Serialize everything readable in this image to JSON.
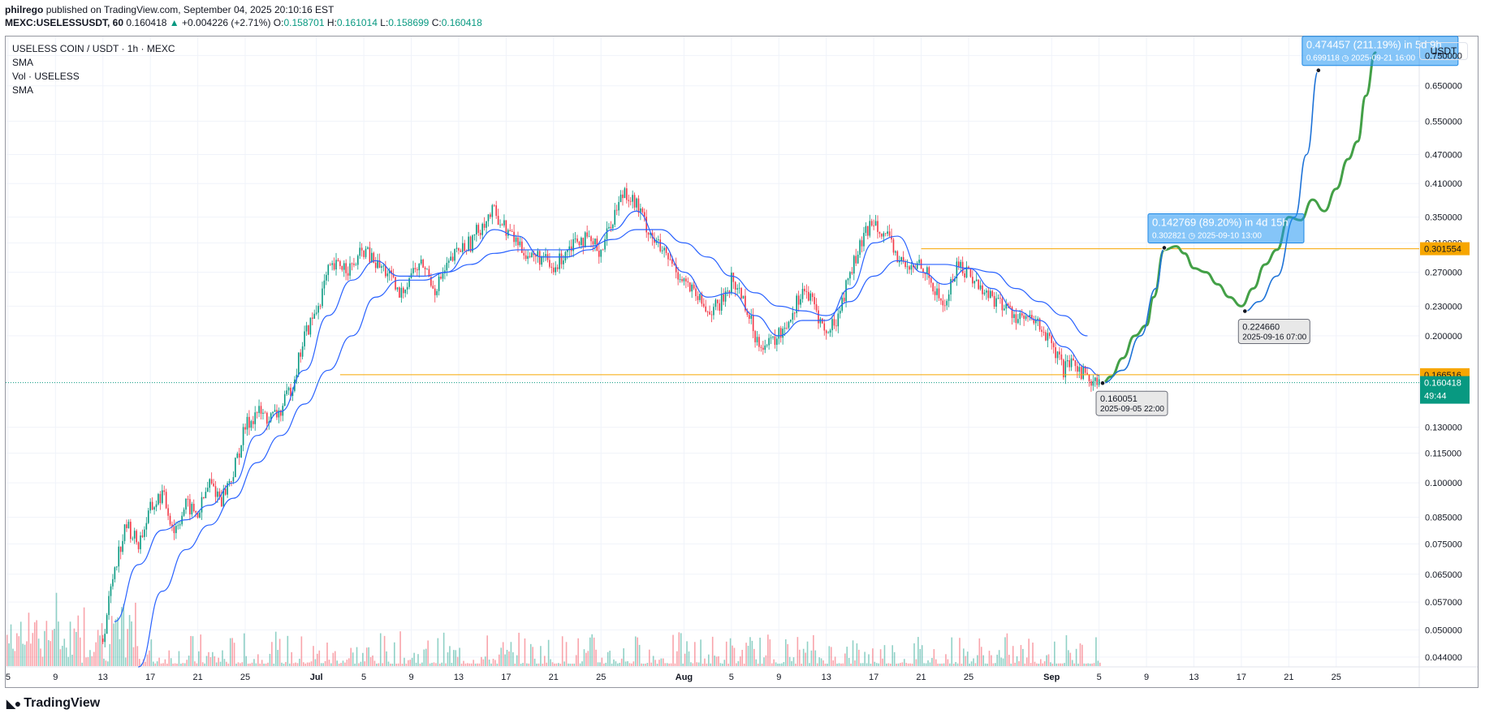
{
  "header": {
    "publisher": "philrego",
    "published_text": "published on TradingView.com, September 04, 2025 20:10:16 EST",
    "symbol": "MEXC:USELESSUSDT, 60",
    "last": "0.160418",
    "change": "+0.004226 (+2.71%)",
    "o_label": "O:",
    "o": "0.158701",
    "h_label": "H:",
    "h": "0.161014",
    "l_label": "L:",
    "l": "0.158699",
    "c_label": "C:",
    "c": "0.160418"
  },
  "legend": {
    "title": "USELESS COIN / USDT · 1h · MEXC",
    "sma1": "SMA",
    "vol": "Vol · USELESS",
    "sma2": "SMA"
  },
  "unit_button": "USDT",
  "brand": "TradingView",
  "chart_data": {
    "type": "candlestick",
    "title": "USELESS COIN / USDT · 1h · MEXC",
    "y_scale": "log",
    "y_range": [
      0.042,
      0.82
    ],
    "y_ticks": [
      "0.750000",
      "0.650000",
      "0.550000",
      "0.470000",
      "0.410000",
      "0.350000",
      "0.310000",
      "0.270000",
      "0.230000",
      "0.200000",
      "0.130000",
      "0.115000",
      "0.100000",
      "0.085000",
      "0.075000",
      "0.065000",
      "0.057000",
      "0.050000",
      "0.044000"
    ],
    "x_ticks": [
      {
        "label": "5",
        "day": 5
      },
      {
        "label": "9",
        "day": 9
      },
      {
        "label": "13",
        "day": 13
      },
      {
        "label": "17",
        "day": 17
      },
      {
        "label": "21",
        "day": 21
      },
      {
        "label": "25",
        "day": 25
      },
      {
        "label": "Jul",
        "day": 31
      },
      {
        "label": "5",
        "day": 35
      },
      {
        "label": "9",
        "day": 39
      },
      {
        "label": "13",
        "day": 43
      },
      {
        "label": "17",
        "day": 47
      },
      {
        "label": "21",
        "day": 51
      },
      {
        "label": "25",
        "day": 55
      },
      {
        "label": "Aug",
        "day": 62
      },
      {
        "label": "5",
        "day": 66
      },
      {
        "label": "9",
        "day": 70
      },
      {
        "label": "13",
        "day": 74
      },
      {
        "label": "17",
        "day": 78
      },
      {
        "label": "21",
        "day": 82
      },
      {
        "label": "25",
        "day": 86
      },
      {
        "label": "Sep",
        "day": 93
      },
      {
        "label": "5",
        "day": 97
      },
      {
        "label": "9",
        "day": 101
      },
      {
        "label": "13",
        "day": 105
      },
      {
        "label": "17",
        "day": 109
      },
      {
        "label": "21",
        "day": 113
      },
      {
        "label": "25",
        "day": 117
      }
    ],
    "x_range_days": [
      4.8,
      124
    ],
    "price_path": [
      [
        13,
        0.048
      ],
      [
        14,
        0.068
      ],
      [
        15,
        0.082
      ],
      [
        16,
        0.075
      ],
      [
        17,
        0.088
      ],
      [
        18,
        0.095
      ],
      [
        19,
        0.08
      ],
      [
        20,
        0.09
      ],
      [
        21,
        0.086
      ],
      [
        22,
        0.1
      ],
      [
        23,
        0.093
      ],
      [
        24,
        0.105
      ],
      [
        25,
        0.13
      ],
      [
        26,
        0.14
      ],
      [
        27,
        0.135
      ],
      [
        28,
        0.14
      ],
      [
        29,
        0.16
      ],
      [
        30,
        0.2
      ],
      [
        31,
        0.225
      ],
      [
        32,
        0.27
      ],
      [
        33,
        0.28
      ],
      [
        34,
        0.275
      ],
      [
        35,
        0.3
      ],
      [
        36,
        0.28
      ],
      [
        37,
        0.27
      ],
      [
        38,
        0.24
      ],
      [
        39,
        0.27
      ],
      [
        40,
        0.28
      ],
      [
        41,
        0.25
      ],
      [
        42,
        0.275
      ],
      [
        43,
        0.3
      ],
      [
        44,
        0.31
      ],
      [
        45,
        0.34
      ],
      [
        46,
        0.36
      ],
      [
        47,
        0.33
      ],
      [
        48,
        0.31
      ],
      [
        49,
        0.29
      ],
      [
        50,
        0.29
      ],
      [
        51,
        0.27
      ],
      [
        52,
        0.3
      ],
      [
        53,
        0.32
      ],
      [
        54,
        0.31
      ],
      [
        55,
        0.3
      ],
      [
        56,
        0.35
      ],
      [
        57,
        0.4
      ],
      [
        58,
        0.37
      ],
      [
        59,
        0.33
      ],
      [
        60,
        0.3
      ],
      [
        61,
        0.28
      ],
      [
        62,
        0.26
      ],
      [
        63,
        0.24
      ],
      [
        64,
        0.225
      ],
      [
        65,
        0.23
      ],
      [
        66,
        0.26
      ],
      [
        67,
        0.24
      ],
      [
        68,
        0.2
      ],
      [
        69,
        0.19
      ],
      [
        70,
        0.2
      ],
      [
        71,
        0.22
      ],
      [
        72,
        0.25
      ],
      [
        73,
        0.23
      ],
      [
        74,
        0.2
      ],
      [
        75,
        0.22
      ],
      [
        76,
        0.27
      ],
      [
        77,
        0.31
      ],
      [
        78,
        0.35
      ],
      [
        79,
        0.32
      ],
      [
        80,
        0.29
      ],
      [
        81,
        0.27
      ],
      [
        82,
        0.285
      ],
      [
        83,
        0.25
      ],
      [
        84,
        0.23
      ],
      [
        85,
        0.28
      ],
      [
        86,
        0.27
      ],
      [
        87,
        0.25
      ],
      [
        88,
        0.24
      ],
      [
        89,
        0.23
      ],
      [
        90,
        0.22
      ],
      [
        91,
        0.215
      ],
      [
        92,
        0.21
      ],
      [
        93,
        0.19
      ],
      [
        94,
        0.17
      ],
      [
        95,
        0.175
      ],
      [
        96,
        0.165
      ],
      [
        97,
        0.16
      ]
    ],
    "sma_fast_path": [
      [
        14,
        0.052
      ],
      [
        16,
        0.068
      ],
      [
        18,
        0.08
      ],
      [
        20,
        0.084
      ],
      [
        22,
        0.09
      ],
      [
        24,
        0.1
      ],
      [
        26,
        0.125
      ],
      [
        28,
        0.14
      ],
      [
        30,
        0.17
      ],
      [
        32,
        0.22
      ],
      [
        34,
        0.26
      ],
      [
        36,
        0.285
      ],
      [
        38,
        0.265
      ],
      [
        40,
        0.265
      ],
      [
        42,
        0.27
      ],
      [
        44,
        0.3
      ],
      [
        46,
        0.33
      ],
      [
        48,
        0.32
      ],
      [
        50,
        0.29
      ],
      [
        52,
        0.29
      ],
      [
        54,
        0.3
      ],
      [
        56,
        0.33
      ],
      [
        58,
        0.36
      ],
      [
        60,
        0.31
      ],
      [
        62,
        0.27
      ],
      [
        64,
        0.24
      ],
      [
        66,
        0.245
      ],
      [
        68,
        0.22
      ],
      [
        70,
        0.2
      ],
      [
        72,
        0.215
      ],
      [
        74,
        0.215
      ],
      [
        76,
        0.25
      ],
      [
        78,
        0.31
      ],
      [
        80,
        0.32
      ],
      [
        82,
        0.27
      ],
      [
        84,
        0.255
      ],
      [
        86,
        0.275
      ],
      [
        88,
        0.25
      ],
      [
        90,
        0.225
      ],
      [
        92,
        0.215
      ],
      [
        94,
        0.19
      ],
      [
        96,
        0.172
      ],
      [
        97,
        0.166
      ]
    ],
    "sma_slow_path": [
      [
        16,
        0.042
      ],
      [
        18,
        0.06
      ],
      [
        20,
        0.073
      ],
      [
        22,
        0.082
      ],
      [
        24,
        0.093
      ],
      [
        26,
        0.11
      ],
      [
        28,
        0.125
      ],
      [
        30,
        0.145
      ],
      [
        32,
        0.17
      ],
      [
        34,
        0.2
      ],
      [
        36,
        0.24
      ],
      [
        38,
        0.26
      ],
      [
        40,
        0.26
      ],
      [
        42,
        0.27
      ],
      [
        44,
        0.28
      ],
      [
        46,
        0.295
      ],
      [
        48,
        0.3
      ],
      [
        50,
        0.3
      ],
      [
        52,
        0.3
      ],
      [
        54,
        0.305
      ],
      [
        56,
        0.315
      ],
      [
        58,
        0.33
      ],
      [
        60,
        0.33
      ],
      [
        62,
        0.31
      ],
      [
        64,
        0.29
      ],
      [
        66,
        0.265
      ],
      [
        68,
        0.245
      ],
      [
        70,
        0.23
      ],
      [
        72,
        0.225
      ],
      [
        74,
        0.22
      ],
      [
        76,
        0.235
      ],
      [
        78,
        0.265
      ],
      [
        80,
        0.285
      ],
      [
        82,
        0.28
      ],
      [
        84,
        0.28
      ],
      [
        86,
        0.275
      ],
      [
        88,
        0.27
      ],
      [
        90,
        0.25
      ],
      [
        92,
        0.235
      ],
      [
        94,
        0.22
      ],
      [
        96,
        0.2
      ]
    ],
    "projection_green": [
      [
        97.3,
        0.1601
      ],
      [
        98,
        0.165
      ],
      [
        99,
        0.18
      ],
      [
        100,
        0.2
      ],
      [
        101,
        0.21
      ],
      [
        101.6,
        0.24
      ],
      [
        102.5,
        0.3
      ],
      [
        103.5,
        0.305
      ],
      [
        104.2,
        0.295
      ],
      [
        105,
        0.275
      ],
      [
        106,
        0.27
      ],
      [
        107,
        0.255
      ],
      [
        108,
        0.24
      ],
      [
        109,
        0.23
      ],
      [
        110,
        0.25
      ],
      [
        111,
        0.28
      ],
      [
        112,
        0.3
      ],
      [
        113,
        0.35
      ],
      [
        114,
        0.345
      ],
      [
        115,
        0.38
      ],
      [
        116,
        0.36
      ],
      [
        117,
        0.4
      ],
      [
        118,
        0.46
      ],
      [
        118.8,
        0.5
      ],
      [
        119.5,
        0.62
      ],
      [
        120.3,
        0.76
      ]
    ],
    "projection_blue_1": [
      [
        97.3,
        0.160051
      ],
      [
        99,
        0.17
      ],
      [
        100.5,
        0.2
      ],
      [
        101.8,
        0.25
      ],
      [
        102.5,
        0.302821
      ]
    ],
    "projection_blue_2": [
      [
        109.3,
        0.22466
      ],
      [
        110.5,
        0.235
      ],
      [
        112,
        0.265
      ],
      [
        113.5,
        0.35
      ],
      [
        114.5,
        0.47
      ],
      [
        115.5,
        0.699118
      ]
    ],
    "horizontal_lines": [
      {
        "price": 0.301554,
        "from_day": 82,
        "color": "#f7a600",
        "label": "0.301554"
      },
      {
        "price": 0.166516,
        "from_day": 33,
        "color": "#f7a600",
        "label": "0.166516"
      },
      {
        "price": 0.160418,
        "from_day": 4.8,
        "color": "#089981",
        "label": "0.160418",
        "dotted": true
      }
    ],
    "last_price_label": "0.160418",
    "countdown": "49:44",
    "annotations": [
      {
        "kind": "blue",
        "day": 102.5,
        "price": 0.302821,
        "line1": "0.142769 (89.20%) in 4d 15h",
        "line2": "0.302821",
        "line2b": "2025-09-10  13:00"
      },
      {
        "kind": "blue",
        "day": 115.5,
        "price": 0.699118,
        "line1": "0.474457 (211.19%) in 5d 9h",
        "line2": "0.699118",
        "line2b": "2025-09-21  16:00"
      },
      {
        "kind": "gray",
        "day": 97.3,
        "price": 0.160051,
        "line1": "0.160051",
        "line2": "2025-09-05 22:00"
      },
      {
        "kind": "gray",
        "day": 109.3,
        "price": 0.22466,
        "line1": "0.224660",
        "line2": "2025-09-16 07:00"
      }
    ],
    "colors": {
      "up": "#089981",
      "down": "#f23645",
      "sma": "#2962ff",
      "projection": "#43a047",
      "blue_line": "#1e73d8",
      "level": "#f7a600"
    }
  }
}
